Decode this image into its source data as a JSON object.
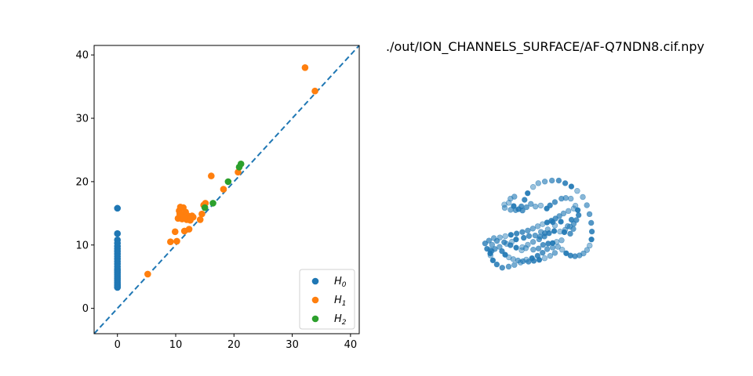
{
  "chart_data": [
    {
      "type": "scatter",
      "title": "",
      "xlabel": "",
      "ylabel": "",
      "xlim": [
        -4,
        41.5
      ],
      "ylim": [
        -4,
        41.5
      ],
      "x_ticks": [
        0,
        10,
        20,
        30,
        40
      ],
      "y_ticks": [
        0,
        10,
        20,
        30,
        40
      ],
      "grid": false,
      "diagonal": {
        "style": "dashed",
        "color": "#1f77b4",
        "from": [
          -4,
          -4
        ],
        "to": [
          41.5,
          41.5
        ]
      },
      "legend": {
        "position": "lower-right",
        "entries": [
          {
            "base": "H",
            "sub": "0",
            "color": "#1f77b4"
          },
          {
            "base": "H",
            "sub": "1",
            "color": "#ff7f0e"
          },
          {
            "base": "H",
            "sub": "2",
            "color": "#2ca02c"
          }
        ]
      },
      "series": [
        {
          "color": "#1f77b4",
          "x": [
            0,
            0,
            0,
            0,
            0,
            0,
            0,
            0,
            0,
            0,
            0,
            0,
            0,
            0,
            0,
            0,
            0,
            0,
            0,
            0,
            0,
            0,
            0,
            0,
            0
          ],
          "y": [
            15.8,
            11.8,
            10.8,
            10.3,
            9.8,
            9.4,
            9.0,
            8.6,
            8.2,
            7.8,
            7.4,
            7.0,
            6.6,
            6.2,
            5.9,
            5.6,
            5.3,
            5.0,
            4.7,
            4.4,
            4.1,
            3.8,
            3.6,
            3.4,
            3.3
          ]
        },
        {
          "color": "#ff7f0e",
          "x": [
            5.2,
            9.1,
            9.9,
            10.2,
            10.4,
            10.6,
            10.8,
            11.0,
            11.1,
            11.3,
            11.5,
            11.7,
            11.9,
            12.1,
            12.3,
            12.5,
            12.8,
            13.0,
            14.2,
            14.5,
            14.8,
            15.1,
            16.1,
            18.2,
            20.7,
            32.2,
            33.9,
            10.7,
            11.4,
            12.6
          ],
          "y": [
            5.4,
            10.5,
            12.1,
            10.6,
            14.2,
            15.4,
            16.0,
            14.5,
            14.1,
            15.9,
            12.2,
            15.2,
            14.0,
            14.6,
            12.5,
            13.9,
            14.6,
            14.4,
            14.0,
            14.9,
            16.3,
            16.6,
            20.9,
            18.8,
            21.5,
            38.0,
            34.3,
            14.9,
            14.3,
            14.2
          ]
        },
        {
          "color": "#2ca02c",
          "x": [
            15.0,
            16.4,
            19.0,
            20.9,
            21.2
          ],
          "y": [
            15.9,
            16.6,
            20.0,
            22.3,
            22.8
          ]
        }
      ]
    },
    {
      "type": "scatter",
      "title": "./out/ION_CHANNELS_SURFACE/AF-Q7NDN8.cif.npy",
      "xlabel": "",
      "ylabel": "",
      "axes": "off",
      "grid": false,
      "series": [
        {
          "color": "#1f77b4",
          "points": [
            [
              0.146,
              0.596
            ],
            [
              0.149,
              0.616
            ],
            [
              0.191,
              0.628
            ],
            [
              0.227,
              0.63
            ],
            [
              0.268,
              0.607
            ],
            [
              0.291,
              0.567
            ],
            [
              0.313,
              0.527
            ],
            [
              0.352,
              0.489
            ],
            [
              0.389,
              0.466
            ],
            [
              0.436,
              0.456
            ],
            [
              0.487,
              0.45
            ],
            [
              0.536,
              0.45
            ],
            [
              0.582,
              0.466
            ],
            [
              0.626,
              0.486
            ],
            [
              0.668,
              0.513
            ],
            [
              0.708,
              0.55
            ],
            [
              0.737,
              0.6
            ],
            [
              0.756,
              0.654
            ],
            [
              0.768,
              0.707
            ],
            [
              0.773,
              0.76
            ],
            [
              0.77,
              0.808
            ],
            [
              0.757,
              0.845
            ],
            [
              0.738,
              0.872
            ],
            [
              0.713,
              0.893
            ],
            [
              0.684,
              0.905
            ],
            [
              0.652,
              0.91
            ],
            [
              0.62,
              0.906
            ],
            [
              0.589,
              0.892
            ],
            [
              0.56,
              0.87
            ],
            [
              0.53,
              0.853
            ],
            [
              0.492,
              0.857
            ],
            [
              0.453,
              0.867
            ],
            [
              0.42,
              0.889
            ],
            [
              0.384,
              0.907
            ],
            [
              0.344,
              0.922
            ],
            [
              0.303,
              0.931
            ],
            [
              0.262,
              0.948
            ],
            [
              0.218,
              0.963
            ],
            [
              0.177,
              0.973
            ],
            [
              0.131,
              0.98
            ],
            [
              0.092,
              0.96
            ],
            [
              0.064,
              0.935
            ],
            [
              0.047,
              0.905
            ],
            [
              0.044,
              0.872
            ],
            [
              0.058,
              0.84
            ],
            [
              0.093,
              0.817
            ],
            [
              0.145,
              0.825
            ],
            [
              0.19,
              0.843
            ],
            [
              0.231,
              0.858
            ],
            [
              0.275,
              0.855
            ],
            [
              0.314,
              0.84
            ],
            [
              0.352,
              0.823
            ],
            [
              0.395,
              0.807
            ],
            [
              0.433,
              0.79
            ],
            [
              0.466,
              0.77
            ],
            [
              0.503,
              0.757
            ],
            [
              0.545,
              0.76
            ],
            [
              0.582,
              0.749
            ],
            [
              0.616,
              0.73
            ],
            [
              0.643,
              0.713
            ],
            [
              0.662,
              0.69
            ],
            [
              0.678,
              0.66
            ],
            [
              0.672,
              0.63
            ],
            [
              0.643,
              0.62
            ],
            [
              0.605,
              0.635
            ],
            [
              0.57,
              0.65
            ],
            [
              0.54,
              0.666
            ],
            [
              0.512,
              0.681
            ],
            [
              0.483,
              0.694
            ],
            [
              0.452,
              0.705
            ],
            [
              0.42,
              0.715
            ],
            [
              0.385,
              0.728
            ],
            [
              0.35,
              0.742
            ],
            [
              0.314,
              0.754
            ],
            [
              0.275,
              0.763
            ],
            [
              0.234,
              0.772
            ],
            [
              0.193,
              0.78
            ],
            [
              0.153,
              0.788
            ],
            [
              0.114,
              0.796
            ],
            [
              0.071,
              0.8
            ],
            [
              0.036,
              0.815
            ],
            [
              0.008,
              0.832
            ],
            [
              0.022,
              0.865
            ],
            [
              0.045,
              0.893
            ],
            [
              0.27,
              0.874
            ],
            [
              0.3,
              0.861
            ],
            [
              0.353,
              0.87
            ],
            [
              0.391,
              0.863
            ],
            [
              0.423,
              0.841
            ],
            [
              0.46,
              0.833
            ],
            [
              0.492,
              0.83
            ],
            [
              0.52,
              0.823
            ],
            [
              0.556,
              0.813
            ],
            [
              0.6,
              0.727
            ],
            [
              0.64,
              0.744
            ],
            [
              0.618,
              0.773
            ],
            [
              0.627,
              0.688
            ],
            [
              0.551,
              0.7
            ],
            [
              0.508,
              0.723
            ],
            [
              0.457,
              0.747
            ],
            [
              0.408,
              0.762
            ],
            [
              0.367,
              0.784
            ],
            [
              0.323,
              0.787
            ],
            [
              0.285,
              0.798
            ],
            [
              0.23,
              0.808
            ],
            [
              0.2,
              0.822
            ],
            [
              0.163,
              0.835
            ],
            [
              0.112,
              0.853
            ],
            [
              0.078,
              0.866
            ],
            [
              0.055,
              0.878
            ],
            [
              0.129,
              0.879
            ],
            [
              0.152,
              0.901
            ],
            [
              0.179,
              0.917
            ],
            [
              0.21,
              0.928
            ],
            [
              0.244,
              0.936
            ],
            [
              0.28,
              0.94
            ],
            [
              0.319,
              0.943
            ],
            [
              0.357,
              0.938
            ],
            [
              0.396,
              0.932
            ],
            [
              0.435,
              0.922
            ],
            [
              0.474,
              0.908
            ],
            [
              0.508,
              0.89
            ],
            [
              0.402,
              0.791
            ],
            [
              0.436,
              0.77
            ],
            [
              0.493,
              0.703
            ],
            [
              0.576,
              0.764
            ],
            [
              0.655,
              0.603
            ],
            [
              0.622,
              0.56
            ],
            [
              0.586,
              0.556
            ],
            [
              0.555,
              0.56
            ],
            [
              0.508,
              0.581
            ],
            [
              0.473,
              0.601
            ],
            [
              0.45,
              0.62
            ],
            [
              0.407,
              0.602
            ],
            [
              0.369,
              0.608
            ],
            [
              0.336,
              0.592
            ],
            [
              0.305,
              0.612
            ],
            [
              0.276,
              0.632
            ],
            [
              0.248,
              0.624
            ],
            [
              0.213,
              0.605
            ],
            [
              0.178,
              0.585
            ],
            [
              0.19,
              0.56
            ],
            [
              0.218,
              0.548
            ]
          ]
        }
      ]
    }
  ]
}
